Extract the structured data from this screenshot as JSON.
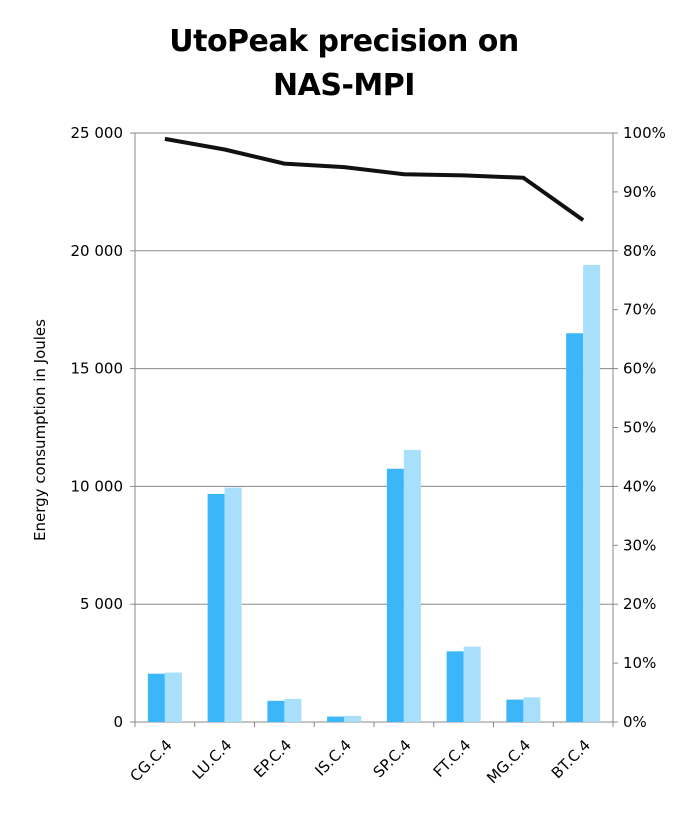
{
  "chart_data": {
    "type": "bar",
    "title": "UtoPeak precision on NAS-MPI",
    "title_lines": [
      "UtoPeak precision on",
      "NAS-MPI"
    ],
    "xlabel": "",
    "ylabel": "Energy consumption in Joules",
    "categories": [
      "CG.C.4",
      "LU.C.4",
      "EP.C.4",
      "IS.C.4",
      "SP.C.4",
      "FT.C.4",
      "MG.C.4",
      "BT.C.4"
    ],
    "series": [
      {
        "type": "bar",
        "axis": "left",
        "color": "#3bb6f8",
        "values": [
          2050,
          9680,
          900,
          230,
          10750,
          3000,
          950,
          16500
        ]
      },
      {
        "type": "bar",
        "axis": "left",
        "color": "#a8dffa",
        "values": [
          2100,
          9950,
          980,
          260,
          11550,
          3200,
          1050,
          19400
        ]
      },
      {
        "type": "line",
        "axis": "right",
        "color": "#111111",
        "values": [
          0.99,
          0.972,
          0.948,
          0.942,
          0.93,
          0.928,
          0.924,
          0.852
        ]
      }
    ],
    "ylim": [
      0,
      25000
    ],
    "yticks": [
      0,
      5000,
      10000,
      15000,
      20000,
      25000
    ],
    "ytick_labels": [
      "0",
      "5 000",
      "10 000",
      "15 000",
      "20 000",
      "25 000"
    ],
    "y2lim": [
      0,
      1
    ],
    "y2ticks": [
      0,
      0.1,
      0.2,
      0.3,
      0.4,
      0.5,
      0.6,
      0.7,
      0.8,
      0.9,
      1.0
    ],
    "y2tick_labels": [
      "0%",
      "10%",
      "20%",
      "30%",
      "40%",
      "50%",
      "60%",
      "70%",
      "80%",
      "90%",
      "100%"
    ],
    "grid": true,
    "legend": "none"
  }
}
